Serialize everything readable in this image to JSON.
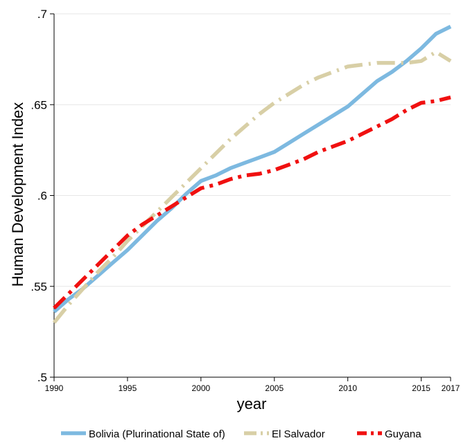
{
  "chart_data": {
    "type": "line",
    "xlabel": "year",
    "ylabel": "Human Development Index",
    "xlim": [
      1990,
      2017
    ],
    "ylim": [
      0.5,
      0.7
    ],
    "x_ticks": [
      1990,
      1995,
      2000,
      2005,
      2010,
      2015,
      2017
    ],
    "y_ticks": [
      ".5",
      ".55",
      ".6",
      ".65",
      ".7"
    ],
    "y_tick_values": [
      0.5,
      0.55,
      0.6,
      0.65,
      0.7
    ],
    "grid": "horizontal",
    "legend_position": "bottom",
    "series": [
      {
        "name": "Bolivia (Plurinational State of)",
        "color": "#7db9e0",
        "dash": "solid",
        "x": [
          1990,
          1991,
          1992,
          1993,
          1994,
          1995,
          1996,
          1997,
          1998,
          1999,
          2000,
          2001,
          2002,
          2003,
          2004,
          2005,
          2006,
          2007,
          2008,
          2009,
          2010,
          2011,
          2012,
          2013,
          2014,
          2015,
          2016,
          2017
        ],
        "values": [
          0.536,
          0.543,
          0.549,
          0.556,
          0.563,
          0.57,
          0.578,
          0.586,
          0.593,
          0.601,
          0.608,
          0.611,
          0.615,
          0.618,
          0.621,
          0.624,
          0.629,
          0.634,
          0.639,
          0.644,
          0.649,
          0.656,
          0.663,
          0.668,
          0.674,
          0.681,
          0.689,
          0.693
        ]
      },
      {
        "name": "El Salvador",
        "color": "#d8cfa6",
        "dash": "longdash",
        "x": [
          1990,
          1991,
          1992,
          1993,
          1994,
          1995,
          1996,
          1997,
          1998,
          1999,
          2000,
          2001,
          2002,
          2003,
          2004,
          2005,
          2006,
          2007,
          2008,
          2009,
          2010,
          2011,
          2012,
          2013,
          2014,
          2015,
          2016,
          2017
        ],
        "values": [
          0.53,
          0.54,
          0.549,
          0.558,
          0.566,
          0.575,
          0.583,
          0.591,
          0.599,
          0.607,
          0.615,
          0.623,
          0.631,
          0.638,
          0.645,
          0.651,
          0.656,
          0.661,
          0.665,
          0.668,
          0.671,
          0.672,
          0.673,
          0.673,
          0.673,
          0.674,
          0.679,
          0.674
        ]
      },
      {
        "name": "Guyana",
        "color": "#f01010",
        "dash": "dashdot",
        "x": [
          1990,
          1991,
          1992,
          1993,
          1994,
          1995,
          1996,
          1997,
          1998,
          1999,
          2000,
          2001,
          2002,
          2003,
          2004,
          2005,
          2006,
          2007,
          2008,
          2009,
          2010,
          2011,
          2012,
          2013,
          2014,
          2015,
          2016,
          2017
        ],
        "values": [
          0.538,
          0.546,
          0.554,
          0.562,
          0.57,
          0.578,
          0.584,
          0.589,
          0.594,
          0.599,
          0.604,
          0.606,
          0.609,
          0.611,
          0.612,
          0.614,
          0.617,
          0.62,
          0.624,
          0.627,
          0.63,
          0.634,
          0.638,
          0.642,
          0.647,
          0.651,
          0.652,
          0.654
        ]
      }
    ]
  }
}
